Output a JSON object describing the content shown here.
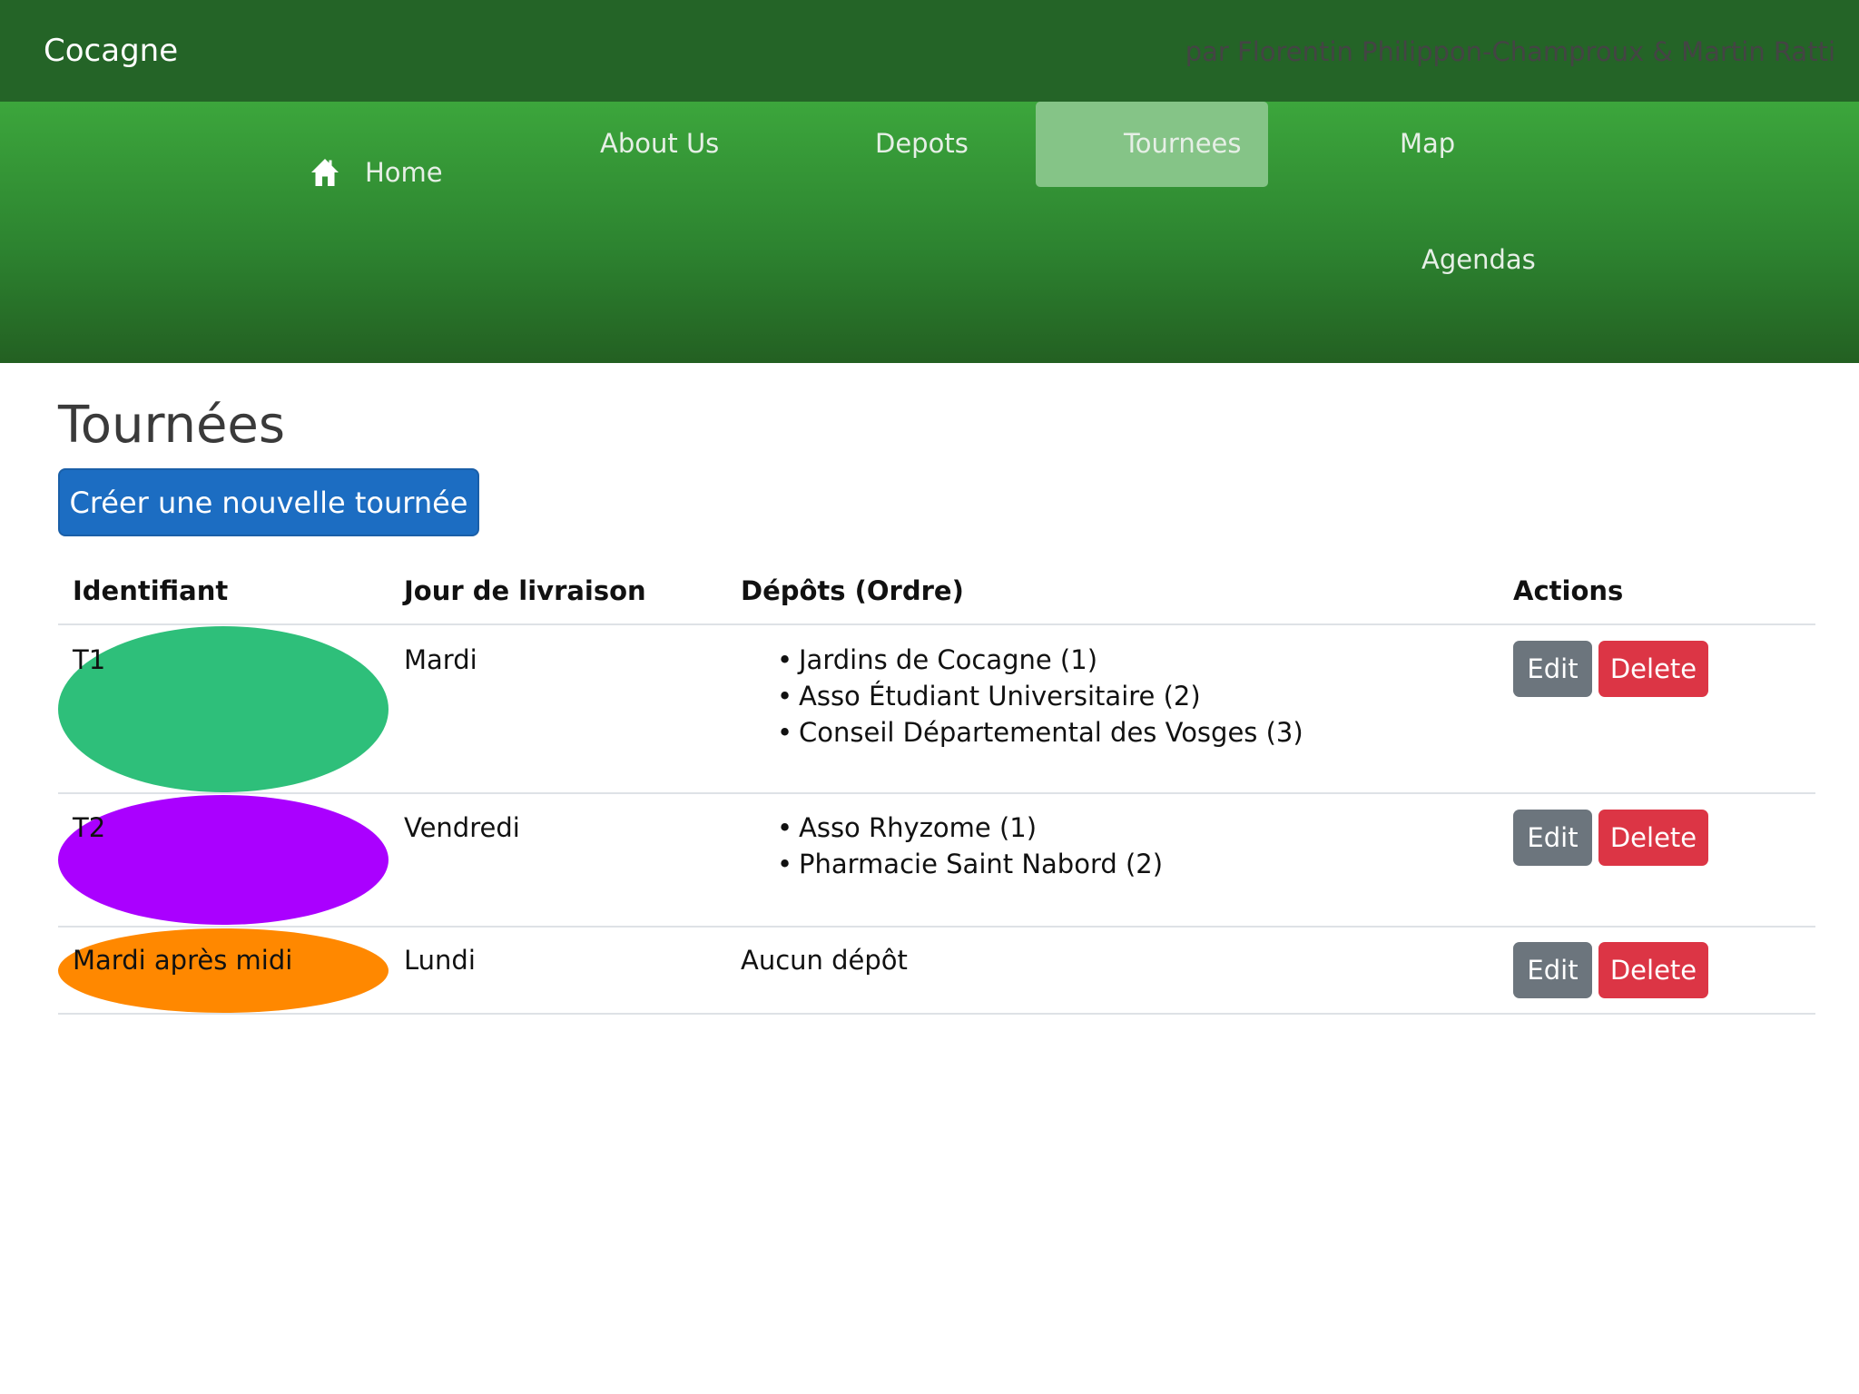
{
  "header": {
    "brand": "Cocagne",
    "authors": "par Florentin Philippon-Champroux & Martin Ratti"
  },
  "nav": {
    "home": "Home",
    "about": "About Us",
    "depots": "Depots",
    "tournees": "Tournees",
    "map": "Map",
    "agendas": "Agendas",
    "active": "Tournees"
  },
  "page": {
    "title": "Tournées",
    "create_label": "Créer une nouvelle tournée"
  },
  "table": {
    "headers": [
      "Identifiant",
      "Jour de livraison",
      "Dépôts (Ordre)",
      "Actions"
    ],
    "rows": [
      {
        "id": "T1",
        "color": "#2ebf7a",
        "day": "Mardi",
        "depots": [
          "Jardins de Cocagne (1)",
          "Asso Étudiant Universitaire (2)",
          "Conseil Départemental des Vosges (3)"
        ]
      },
      {
        "id": "T2",
        "color": "#aa00ff",
        "day": "Vendredi",
        "depots": [
          "Asso Rhyzome (1)",
          "Pharmacie Saint Nabord (2)"
        ]
      },
      {
        "id": "Mardi après midi",
        "color": "#ff8800",
        "day": "Lundi",
        "depots_text": "Aucun dépôt"
      }
    ],
    "edit_label": "Edit",
    "delete_label": "Delete"
  }
}
